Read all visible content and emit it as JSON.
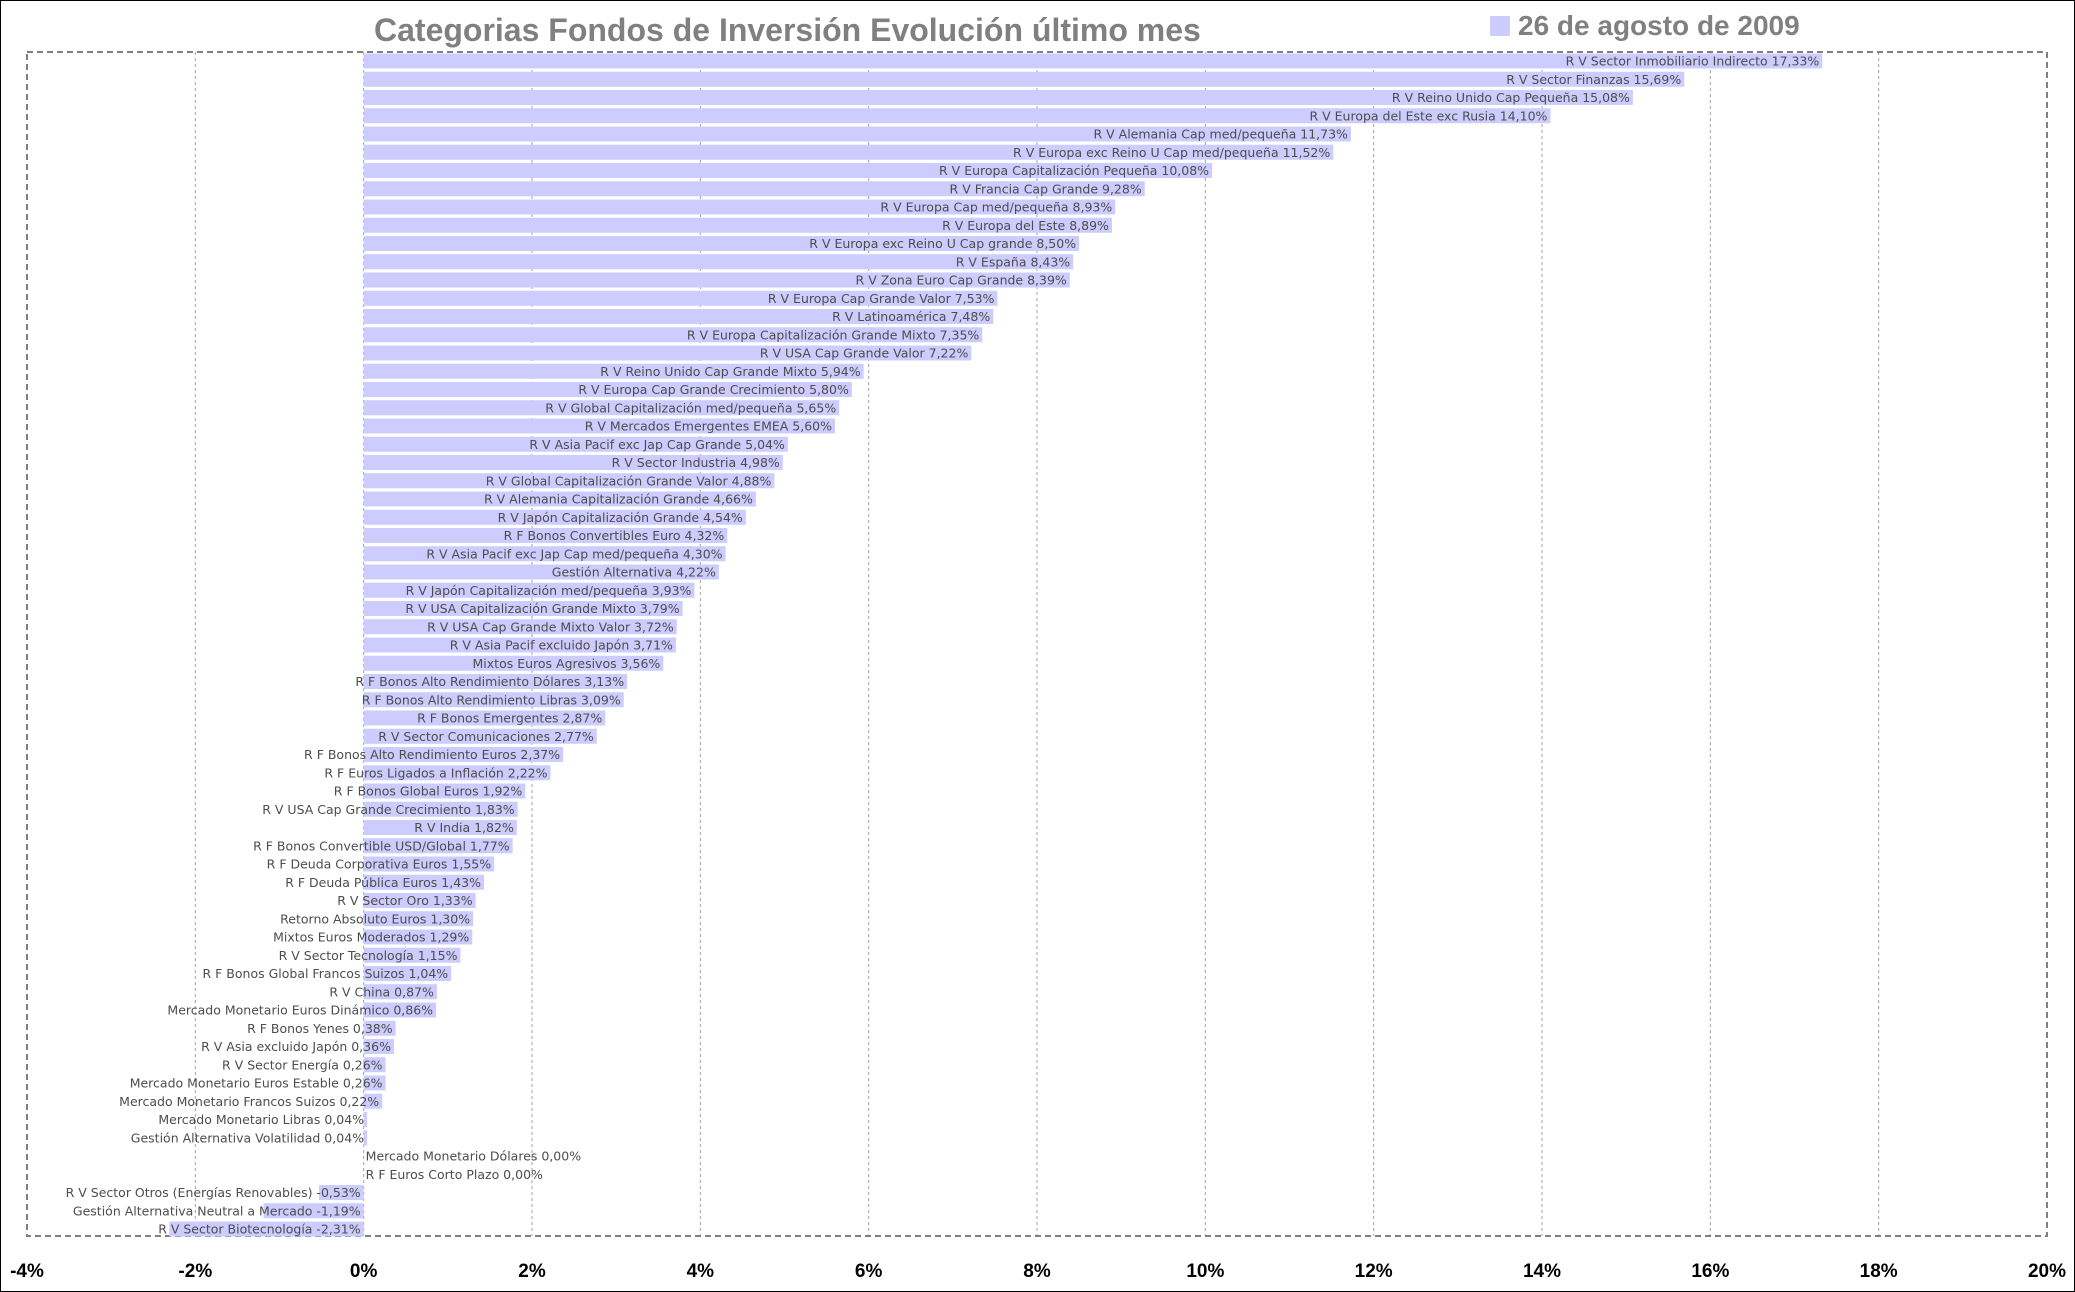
{
  "chart_data": {
    "type": "bar",
    "orientation": "horizontal",
    "title": "Categorias Fondos de Inversión Evolución último mes",
    "legend": {
      "entries": [
        "26 de agosto de 2009"
      ],
      "placement": "top-right"
    },
    "series": [
      {
        "name": "26 de agosto de 2009",
        "color": "#ccccff"
      }
    ],
    "xlim": [
      -4,
      20
    ],
    "xticks": [
      "-4%",
      "-2%",
      "0%",
      "2%",
      "4%",
      "6%",
      "8%",
      "10%",
      "12%",
      "14%",
      "16%",
      "18%",
      "20%"
    ],
    "grid": true,
    "data": [
      {
        "label": "R V Sector Inmobiliario Indirecto 17,33%",
        "value": 17.33
      },
      {
        "label": "R V Sector Finanzas 15,69%",
        "value": 15.69
      },
      {
        "label": "R V Reino Unido Cap Pequeña 15,08%",
        "value": 15.08
      },
      {
        "label": "R V Europa del Este exc Rusia 14,10%",
        "value": 14.1
      },
      {
        "label": "R V Alemania Cap med/pequeña 11,73%",
        "value": 11.73
      },
      {
        "label": "R V Europa exc Reino U Cap med/pequeña 11,52%",
        "value": 11.52
      },
      {
        "label": "R V Europa Capitalización Pequeña 10,08%",
        "value": 10.08
      },
      {
        "label": "R V Francia Cap Grande 9,28%",
        "value": 9.28
      },
      {
        "label": "R V Europa Cap med/pequeña 8,93%",
        "value": 8.93
      },
      {
        "label": "R V Europa del Este 8,89%",
        "value": 8.89
      },
      {
        "label": "R V Europa exc Reino U Cap grande 8,50%",
        "value": 8.5
      },
      {
        "label": "R V España 8,43%",
        "value": 8.43
      },
      {
        "label": "R V Zona Euro Cap Grande 8,39%",
        "value": 8.39
      },
      {
        "label": "R V Europa Cap Grande Valor 7,53%",
        "value": 7.53
      },
      {
        "label": "R V Latinoamérica 7,48%",
        "value": 7.48
      },
      {
        "label": "R V Europa Capitalización Grande Mixto 7,35%",
        "value": 7.35
      },
      {
        "label": "R V USA Cap Grande Valor 7,22%",
        "value": 7.22
      },
      {
        "label": "R V Reino Unido Cap Grande Mixto 5,94%",
        "value": 5.94
      },
      {
        "label": "R V Europa Cap Grande Crecimiento 5,80%",
        "value": 5.8
      },
      {
        "label": "R V Global Capitalización med/pequeña 5,65%",
        "value": 5.65
      },
      {
        "label": "R V Mercados Emergentes EMEA 5,60%",
        "value": 5.6
      },
      {
        "label": "R V Asia Pacif exc Jap Cap Grande 5,04%",
        "value": 5.04
      },
      {
        "label": "R V Sector Industria 4,98%",
        "value": 4.98
      },
      {
        "label": "R V Global Capitalización Grande Valor 4,88%",
        "value": 4.88
      },
      {
        "label": "R V Alemania Capitalización Grande 4,66%",
        "value": 4.66
      },
      {
        "label": "R V Japón Capitalización Grande 4,54%",
        "value": 4.54
      },
      {
        "label": "R F Bonos Convertibles Euro 4,32%",
        "value": 4.32
      },
      {
        "label": "R V Asia Pacif exc Jap Cap med/pequeña 4,30%",
        "value": 4.3
      },
      {
        "label": "Gestión Alternativa 4,22%",
        "value": 4.22
      },
      {
        "label": "R V Japón Capitalización med/pequeña 3,93%",
        "value": 3.93
      },
      {
        "label": "R V USA Capitalización Grande Mixto 3,79%",
        "value": 3.79
      },
      {
        "label": "R V USA Cap Grande Mixto Valor 3,72%",
        "value": 3.72
      },
      {
        "label": "R V Asia Pacif excluido Japón 3,71%",
        "value": 3.71
      },
      {
        "label": "Mixtos Euros Agresivos 3,56%",
        "value": 3.56
      },
      {
        "label": "R F Bonos Alto Rendimiento Dólares 3,13%",
        "value": 3.13
      },
      {
        "label": "R F Bonos Alto Rendimiento Libras 3,09%",
        "value": 3.09
      },
      {
        "label": "R F Bonos Emergentes 2,87%",
        "value": 2.87
      },
      {
        "label": "R V Sector Comunicaciones 2,77%",
        "value": 2.77
      },
      {
        "label": "R F Bonos Alto Rendimiento Euros 2,37%",
        "value": 2.37
      },
      {
        "label": "R F Euros Ligados a Inflación 2,22%",
        "value": 2.22
      },
      {
        "label": "R F Bonos Global Euros 1,92%",
        "value": 1.92
      },
      {
        "label": "R V USA Cap Grande Crecimiento 1,83%",
        "value": 1.83
      },
      {
        "label": "R V India 1,82%",
        "value": 1.82
      },
      {
        "label": "R F Bonos Convertible USD/Global 1,77%",
        "value": 1.77
      },
      {
        "label": "R F Deuda Corporativa Euros 1,55%",
        "value": 1.55
      },
      {
        "label": "R F Deuda Pública Euros 1,43%",
        "value": 1.43
      },
      {
        "label": "R V Sector Oro 1,33%",
        "value": 1.33
      },
      {
        "label": "Retorno Absoluto Euros 1,30%",
        "value": 1.3
      },
      {
        "label": "Mixtos Euros Moderados 1,29%",
        "value": 1.29
      },
      {
        "label": "R V Sector Tecnología 1,15%",
        "value": 1.15
      },
      {
        "label": "R F Bonos Global Francos Suizos 1,04%",
        "value": 1.04
      },
      {
        "label": "R V China 0,87%",
        "value": 0.87
      },
      {
        "label": "Mercado Monetario Euros Dinámico 0,86%",
        "value": 0.86
      },
      {
        "label": "R F Bonos Yenes 0,38%",
        "value": 0.38
      },
      {
        "label": "R V Asia excluido Japón 0,36%",
        "value": 0.36
      },
      {
        "label": "R V Sector Energía 0,26%",
        "value": 0.26
      },
      {
        "label": "Mercado Monetario Euros Estable 0,26%",
        "value": 0.26
      },
      {
        "label": "Mercado Monetario Francos Suizos 0,22%",
        "value": 0.22
      },
      {
        "label": "Mercado Monetario Libras 0,04%",
        "value": 0.04
      },
      {
        "label": "Gestión Alternativa Volatilidad 0,04%",
        "value": 0.04
      },
      {
        "label": "Mercado Monetario Dólares 0,00%",
        "value": 0.0
      },
      {
        "label": "R F Euros Corto Plazo 0,00%",
        "value": 0.0
      },
      {
        "label": "R V Sector Otros (Energías Renovables) -0,53%",
        "value": -0.53
      },
      {
        "label": "Gestión Alternativa Neutral a Mercado -1,19%",
        "value": -1.19
      },
      {
        "label": "R V Sector Biotecnología -2,31%",
        "value": -2.31
      }
    ]
  }
}
